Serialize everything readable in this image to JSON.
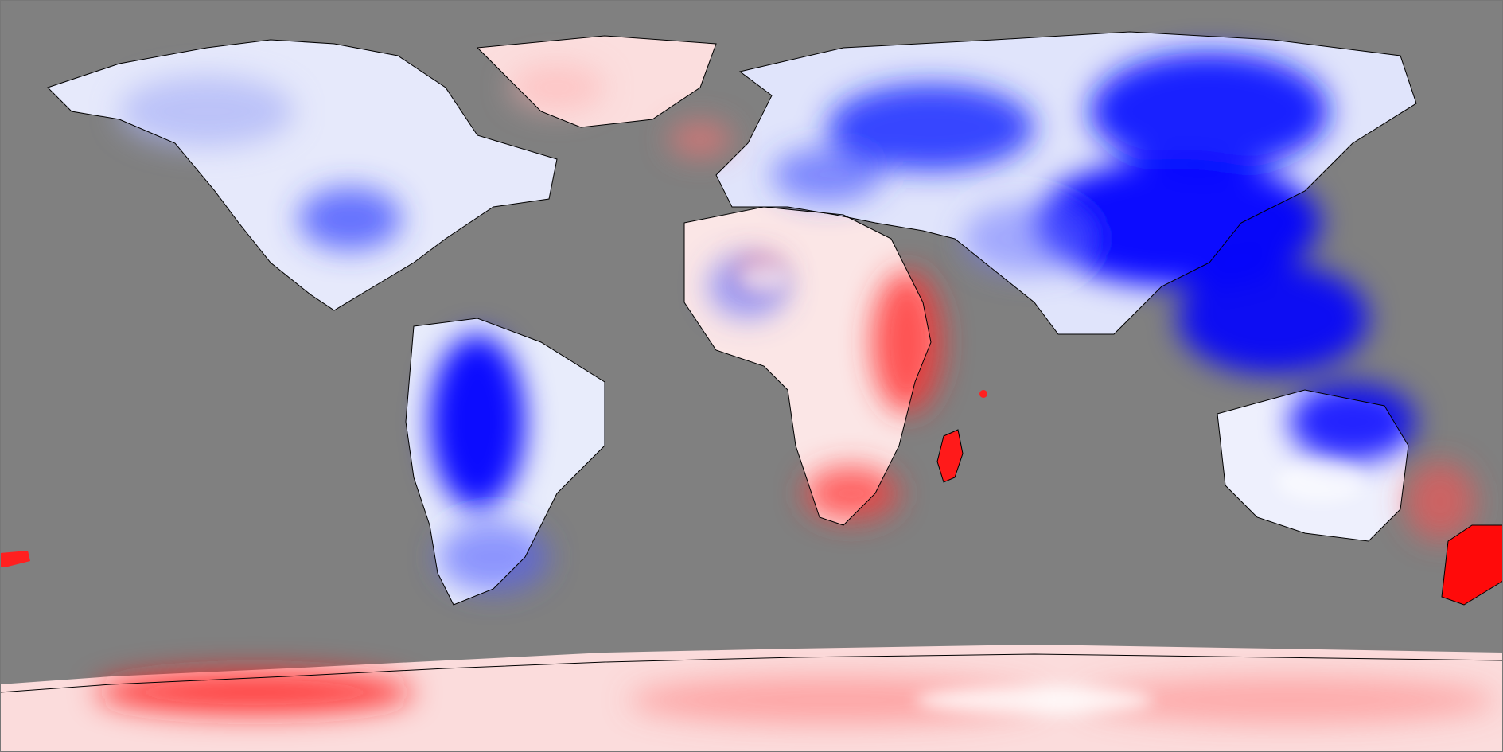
{
  "map": {
    "projection": "equirectangular",
    "extent": {
      "lon": [
        -180,
        180
      ],
      "lat": [
        -90,
        90
      ]
    },
    "background_color": "#808080",
    "coastline_color": "#000000",
    "colors": {
      "strong_positive": "#ff0000",
      "neutral": "#ffffff",
      "strong_negative": "#0000ff"
    },
    "has_legend": false,
    "has_title": false,
    "has_axes": false
  }
}
